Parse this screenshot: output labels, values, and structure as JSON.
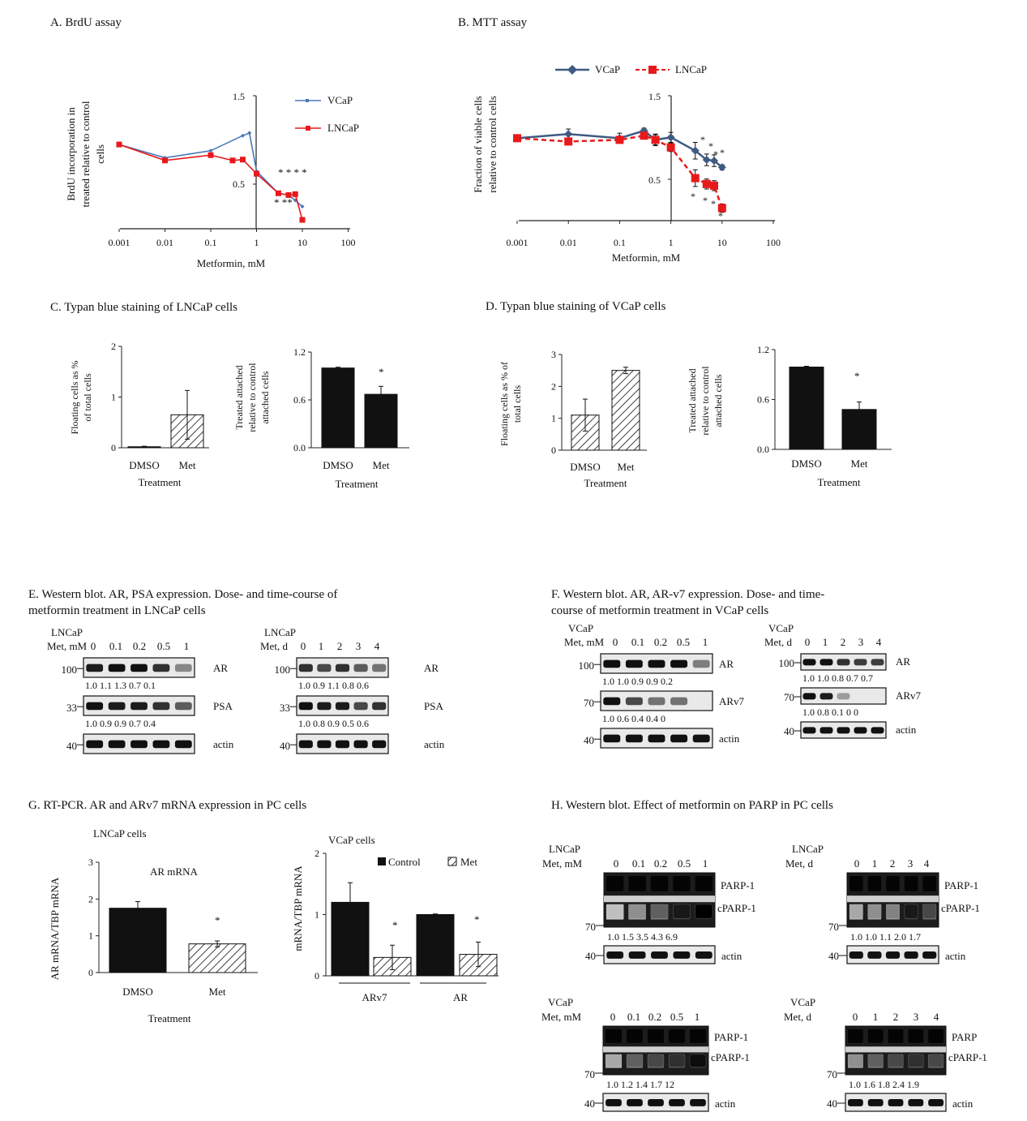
{
  "panelA": {
    "title": "A. BrdU assay",
    "ylabel": [
      "BrdU incorporation in",
      "treated relative to control",
      "cells"
    ],
    "xlabel": "Metformin, mM",
    "legend": [
      "VCaP",
      "LNCaP"
    ],
    "stars_top": "* * * *",
    "stars_bottom": "* **"
  },
  "panelB": {
    "title": "B. MTT assay",
    "ylabel": [
      "Fraction of viable cells",
      "relative to control cells"
    ],
    "xlabel": "Metformin, mM",
    "legend": [
      "VCaP",
      "LNCaP"
    ]
  },
  "panelC": {
    "title": "C. Typan blue staining of LNCaP cells",
    "ylabel1": [
      "Floating cells as %",
      "of total cells"
    ],
    "ylabel2": [
      "Treated attached",
      "relative to control",
      "attached cells"
    ],
    "xlabel": "Treatment",
    "star": "*"
  },
  "panelD": {
    "title": "D. Typan blue staining of VCaP cells",
    "ylabel1": [
      "Floating cells as % of",
      "total cells"
    ],
    "ylabel2": [
      "Treated attached",
      "relative to control",
      "attached cells"
    ],
    "xlabel": "Treatment",
    "star": "*"
  },
  "panelE": {
    "title": [
      "E. Western blot. AR, PSA expression. Dose- and time-course of",
      "metformin treatment  in LNCaP cells"
    ],
    "left": {
      "cell": "LNCaP",
      "cond": "Met, mM",
      "lanes": [
        "0",
        "0.1",
        "0.2",
        "0.5",
        "1"
      ],
      "rows": [
        {
          "mw": "100",
          "label": "AR",
          "quant": "1.0  1.1  1.3  0.7  0.1"
        },
        {
          "mw": "33",
          "label": "PSA",
          "quant": "1.0  0.9  0.9  0.7  0.4"
        },
        {
          "mw": "40",
          "label": "actin",
          "quant": ""
        }
      ]
    },
    "right": {
      "cell": "LNCaP",
      "cond": "Met, d",
      "lanes": [
        "0",
        "1",
        "2",
        "3",
        "4"
      ],
      "rows": [
        {
          "mw": "100",
          "label": "AR",
          "quant": "1.0 0.9 1.1  0.8 0.6"
        },
        {
          "mw": "33",
          "label": "PSA",
          "quant": "1.0 0.8 0.9 0.5 0.6"
        },
        {
          "mw": "40",
          "label": "actin",
          "quant": ""
        }
      ]
    }
  },
  "panelF": {
    "title": [
      "F. Western blot. AR, AR-v7 expression. Dose- and time-",
      "course of metformin treatment in VCaP cells"
    ],
    "left": {
      "cell": "VCaP",
      "cond": "Met, mM",
      "lanes": [
        "0",
        "0.1",
        "0.2",
        "0.5",
        "1"
      ],
      "rows": [
        {
          "mw": "100",
          "label": "AR",
          "quant": "1.0  1.0  0.9  0.9  0.2"
        },
        {
          "mw": "70",
          "label": "ARv7",
          "quant": "1.0  0.6  0.4  0.4   0"
        },
        {
          "mw": "40",
          "label": "actin",
          "quant": ""
        }
      ]
    },
    "right": {
      "cell": "VCaP",
      "cond": "Met, d",
      "lanes": [
        "0",
        "1",
        "2",
        "3",
        "4"
      ],
      "rows": [
        {
          "mw": "100",
          "label": "AR",
          "quant": "1.0 1.0 0.8 0.7 0.7"
        },
        {
          "mw": "70",
          "label": "ARv7",
          "quant": "1.0 0.8 0.1  0   0"
        },
        {
          "mw": "40",
          "label": "actin",
          "quant": ""
        }
      ]
    }
  },
  "panelG": {
    "title": "G. RT-PCR. AR and ARv7 mRNA expression in PC cells",
    "left_caption": "LNCaP cells",
    "left_inner": "AR mRNA",
    "left_ylabel": "AR mRNA/TBP mRNA",
    "left_xlabel": "Treatment",
    "right_caption": "VCaP cells",
    "right_ylabel": "mRNA/TBP mRNA",
    "legend": [
      "Control",
      "Met"
    ],
    "groups": [
      "ARv7",
      "AR"
    ],
    "star": "*"
  },
  "panelH": {
    "title": "H. Western blot. Effect of metformin on PARP in PC cells",
    "blots": [
      {
        "cell": "LNCaP",
        "cond": "Met, mM",
        "lanes": [
          "0",
          "0.1",
          "0.2",
          "0.5",
          "1"
        ],
        "labels": [
          "PARP-1",
          "cPARP-1"
        ],
        "mw": "70",
        "quant": "1.0 1.5 3.5  4.3  6.9",
        "actin_mw": "40",
        "actin": "actin"
      },
      {
        "cell": "LNCaP",
        "cond": "Met, d",
        "lanes": [
          "0",
          "1",
          "2",
          "3",
          "4"
        ],
        "labels": [
          "PARP-1",
          "cPARP-1"
        ],
        "mw": "70",
        "quant": "1.0 1.0 1.1 2.0 1.7",
        "actin_mw": "40",
        "actin": "actin"
      },
      {
        "cell": "VCaP",
        "cond": "Met, mM",
        "lanes": [
          "0",
          "0.1",
          "0.2",
          "0.5",
          "1"
        ],
        "labels": [
          "PARP-1",
          "cPARP-1"
        ],
        "mw": "70",
        "quant": "1.0  1.2  1.4  1.7  12",
        "actin_mw": "40",
        "actin": "actin"
      },
      {
        "cell": "VCaP",
        "cond": "Met, d",
        "lanes": [
          "0",
          "1",
          "2",
          "3",
          "4"
        ],
        "labels": [
          "PARP",
          "cPARP-1"
        ],
        "mw": "70",
        "quant": "1.0 1.6 1.8 2.4 1.9",
        "actin_mw": "40",
        "actin": "actin"
      }
    ]
  },
  "chart_data": [
    {
      "id": "A",
      "type": "line",
      "title": "A. BrdU assay",
      "xscale": "log",
      "xlabel": "Metformin, mM",
      "ylabel": "BrdU incorporation in treated relative to control cells",
      "xticks": [
        "0.001",
        "0.01",
        "0.1",
        "1",
        "10",
        "100"
      ],
      "yticks": [
        "0.5",
        "1.5"
      ],
      "ylim": [
        0,
        1.5
      ],
      "series": [
        {
          "name": "VCaP",
          "color": "#4a78b8",
          "marker": "diamond",
          "x": [
            0.001,
            0.01,
            0.1,
            0.5,
            0.7,
            1,
            3,
            5,
            7,
            10
          ],
          "y": [
            0.95,
            0.8,
            0.88,
            1.05,
            1.08,
            0.65,
            0.4,
            0.38,
            0.32,
            0.25
          ]
        },
        {
          "name": "LNCaP",
          "color": "#e8191b",
          "marker": "square",
          "x": [
            0.001,
            0.01,
            0.1,
            0.3,
            0.5,
            1,
            3,
            5,
            7,
            10
          ],
          "y": [
            0.95,
            0.77,
            0.83,
            0.77,
            0.78,
            0.62,
            0.4,
            0.38,
            0.39,
            0.1
          ]
        }
      ]
    },
    {
      "id": "B",
      "type": "line",
      "title": "B. MTT assay",
      "xscale": "log",
      "xlabel": "Metformin, mM",
      "ylabel": "Fraction of viable cells relative to control cells",
      "xticks": [
        "0.001",
        "0.01",
        "0.1",
        "1",
        "10",
        "100"
      ],
      "yticks": [
        "0.5",
        "1.5"
      ],
      "ylim": [
        0,
        1.5
      ],
      "series": [
        {
          "name": "VCaP",
          "color": "#3f5a83",
          "marker": "diamond",
          "x": [
            0.001,
            0.01,
            0.1,
            0.3,
            0.5,
            1,
            3,
            5,
            7,
            10
          ],
          "y": [
            0.99,
            1.04,
            0.99,
            1.08,
            0.97,
            1.0,
            0.84,
            0.73,
            0.72,
            0.64
          ],
          "err": [
            0.02,
            0.06,
            0.06,
            0.03,
            0.07,
            0.06,
            0.1,
            0.07,
            0.07,
            0.03
          ]
        },
        {
          "name": "LNCaP",
          "color": "#e8191b",
          "marker": "square",
          "dashed": true,
          "x": [
            0.001,
            0.01,
            0.1,
            0.3,
            0.5,
            1,
            3,
            5,
            7,
            10
          ],
          "y": [
            0.99,
            0.95,
            0.97,
            1.02,
            0.97,
            0.88,
            0.51,
            0.44,
            0.42,
            0.15
          ],
          "err": [
            0.02,
            0.03,
            0.04,
            0.03,
            0.06,
            0.05,
            0.1,
            0.06,
            0.06,
            0.05
          ]
        }
      ]
    },
    {
      "id": "C1",
      "type": "bar",
      "categories": [
        "DMSO",
        "Met"
      ],
      "values": [
        0.02,
        0.65
      ],
      "err": [
        0.01,
        0.48
      ],
      "ylim": [
        0,
        2
      ],
      "yticks": [
        "0",
        "1",
        "2"
      ],
      "xlabel": "Treatment",
      "ylabel": "Floating cells as % of total cells"
    },
    {
      "id": "C2",
      "type": "bar",
      "categories": [
        "DMSO",
        "Met"
      ],
      "values": [
        1.0,
        0.67
      ],
      "err": [
        0.01,
        0.1
      ],
      "ylim": [
        0,
        1.2
      ],
      "yticks": [
        "0.0",
        "0.6",
        "1.2"
      ],
      "xlabel": "Treatment",
      "ylabel": "Treated attached relative to control attached cells"
    },
    {
      "id": "D1",
      "type": "bar",
      "categories": [
        "DMSO",
        "Met"
      ],
      "values": [
        1.1,
        2.5
      ],
      "err": [
        0.5,
        0.1
      ],
      "ylim": [
        0,
        3
      ],
      "yticks": [
        "0",
        "1",
        "2",
        "3"
      ],
      "xlabel": "Treatment",
      "ylabel": "Floating cells as % of total cells"
    },
    {
      "id": "D2",
      "type": "bar",
      "categories": [
        "DMSO",
        "Met"
      ],
      "values": [
        0.99,
        0.48
      ],
      "err": [
        0.01,
        0.09
      ],
      "ylim": [
        0,
        1.2
      ],
      "yticks": [
        "0.0",
        "0.6",
        "1.2"
      ],
      "xlabel": "Treatment",
      "ylabel": "Treated attached relative to control attached cells"
    },
    {
      "id": "G1",
      "type": "bar",
      "title": "AR mRNA",
      "categories": [
        "DMSO",
        "Met"
      ],
      "values": [
        1.75,
        0.78
      ],
      "err": [
        0.18,
        0.08
      ],
      "ylim": [
        0,
        3
      ],
      "yticks": [
        "0",
        "1",
        "2",
        "3"
      ],
      "xlabel": "Treatment",
      "ylabel": "AR mRNA/TBP mRNA"
    },
    {
      "id": "G2",
      "type": "bar",
      "title": "VCaP cells",
      "categories": [
        "ARv7",
        "AR"
      ],
      "series": [
        {
          "name": "Control",
          "values": [
            1.2,
            1.0
          ],
          "err": [
            0.32,
            0.01
          ]
        },
        {
          "name": "Met",
          "values": [
            0.3,
            0.35
          ],
          "err": [
            0.2,
            0.2
          ]
        }
      ],
      "ylim": [
        0,
        2
      ],
      "yticks": [
        "0",
        "1",
        "2"
      ],
      "ylabel": "mRNA/TBP mRNA"
    }
  ]
}
